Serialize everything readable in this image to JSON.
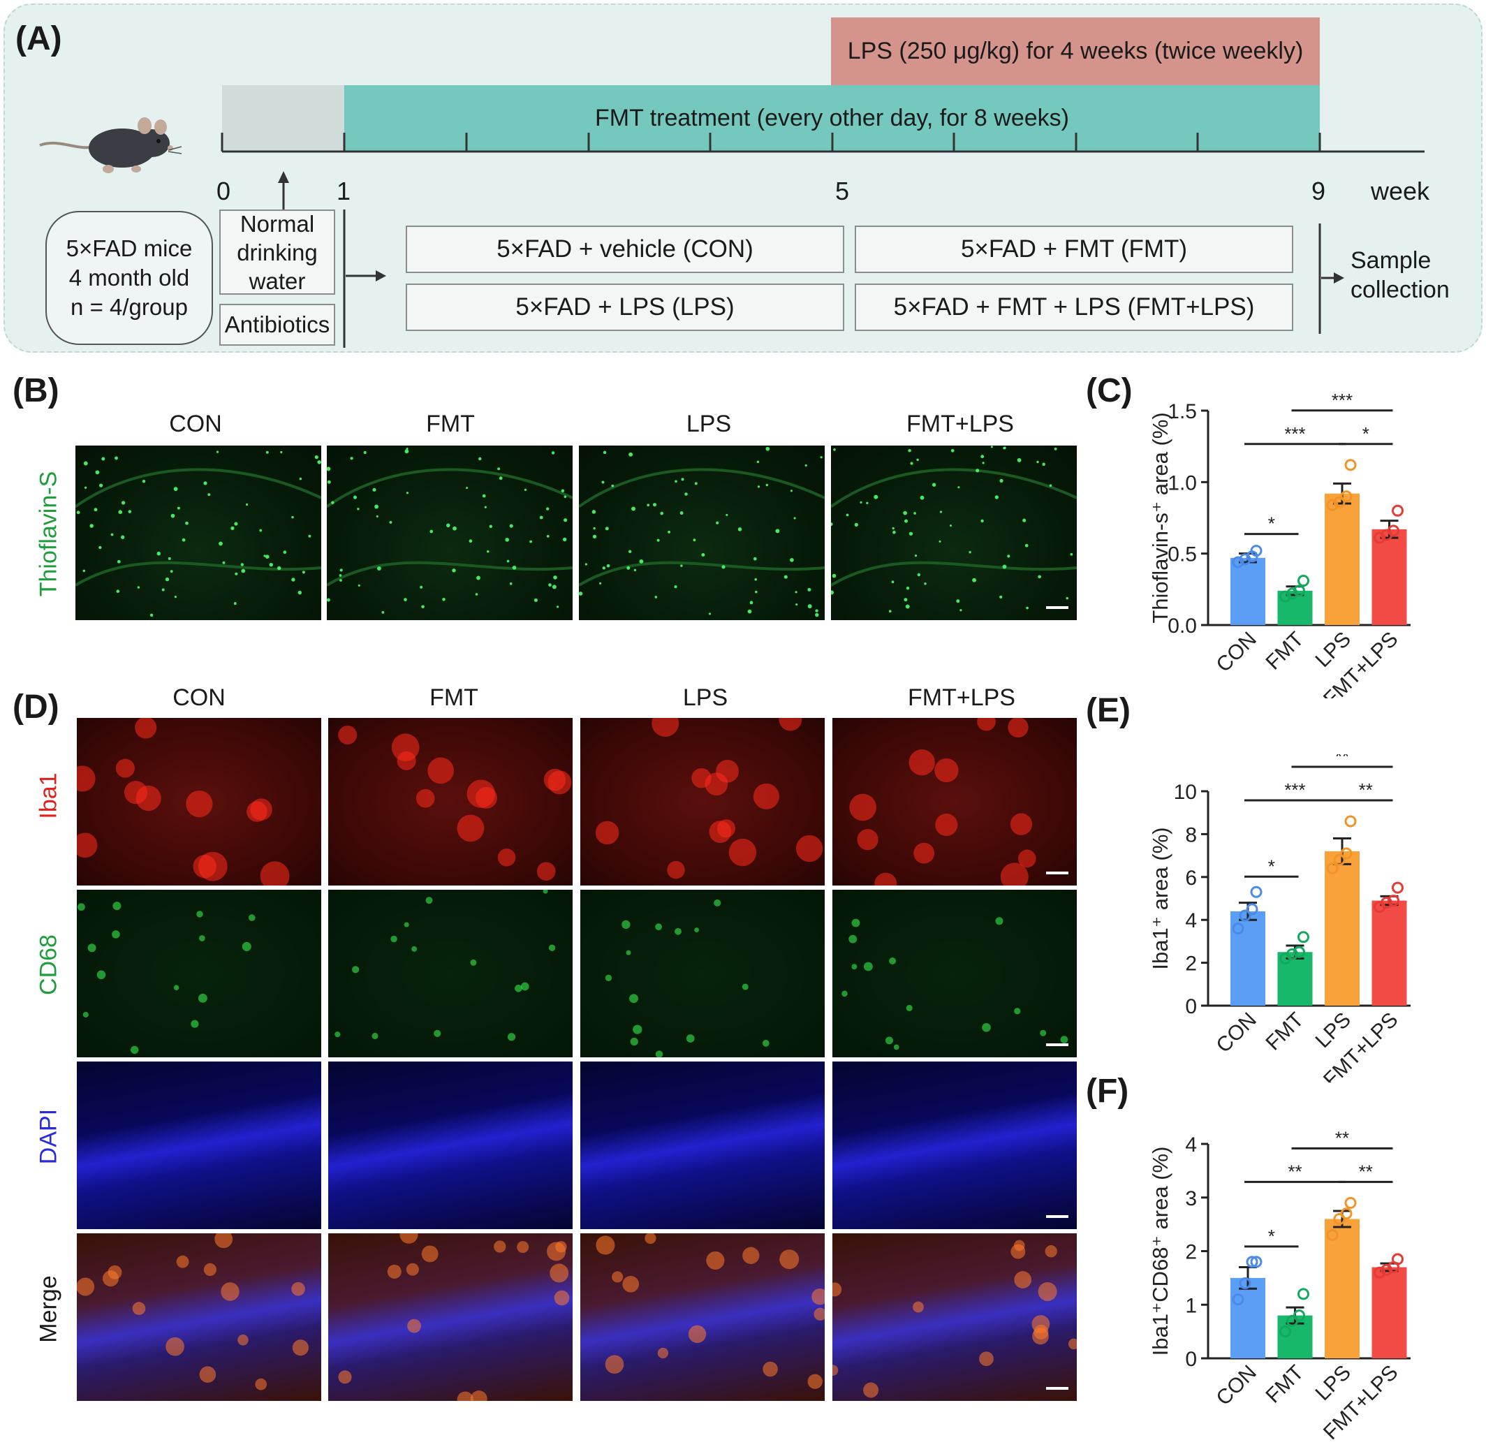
{
  "panelA": {
    "letter": "(A)",
    "lps_bar": "LPS (250 μg/kg)  for 4 weeks (twice weekly)",
    "fmt_bar": "FMT treatment (every other day, for 8 weeks)",
    "ticks": [
      "0",
      "1",
      "5",
      "9",
      "week"
    ],
    "mouse_info": [
      "5×FAD mice",
      "4 month old",
      "n = 4/group"
    ],
    "water": [
      "Normal",
      "drinking",
      "water"
    ],
    "antibiotics": "Antibiotics",
    "groups": [
      "5×FAD + vehicle (CON)",
      "5×FAD + FMT (FMT)",
      "5×FAD + LPS (LPS)",
      "5×FAD + FMT + LPS (FMT+LPS)"
    ],
    "sample": [
      "Sample",
      "collection"
    ],
    "colors": {
      "lps": "#d4948b",
      "fmt": "#74c8be",
      "antibiotic": "#cfdcda",
      "background": "#e4f1ef"
    }
  },
  "panelB": {
    "letter": "(B)",
    "columns": [
      "CON",
      "FMT",
      "LPS",
      "FMT+LPS"
    ],
    "row_label": "Thioflavin-S"
  },
  "panelD": {
    "letter": "(D)",
    "columns": [
      "CON",
      "FMT",
      "LPS",
      "FMT+LPS"
    ],
    "rows": [
      "Iba1",
      "CD68",
      "DAPI",
      "Merge"
    ],
    "row_colors": [
      "#e0201b",
      "#1e9e3a",
      "#2a2ae0",
      "#1a1a1a"
    ]
  },
  "chart_data": [
    {
      "panel": "(C)",
      "type": "bar",
      "categories": [
        "CON",
        "FMT",
        "LPS",
        "FMT+LPS"
      ],
      "values": [
        0.47,
        0.24,
        0.92,
        0.67
      ],
      "errors": [
        0.03,
        0.03,
        0.07,
        0.06
      ],
      "points": [
        [
          0.44,
          0.46,
          0.48,
          0.52
        ],
        [
          0.2,
          0.22,
          0.24,
          0.31
        ],
        [
          0.84,
          0.86,
          0.9,
          1.12
        ],
        [
          0.61,
          0.63,
          0.66,
          0.8
        ]
      ],
      "ylabel": "Thioflavin-s⁺ area (%)",
      "ylim": [
        0,
        1.5
      ],
      "yticks": [
        "0.0",
        "0.5",
        "1.0",
        "1.5"
      ],
      "sig": [
        {
          "from": 0,
          "to": 1,
          "label": "*"
        },
        {
          "from": 0,
          "to": 2,
          "label": "***"
        },
        {
          "from": 2,
          "to": 3,
          "label": "*"
        },
        {
          "from": 1,
          "to": 3,
          "label": "***"
        }
      ]
    },
    {
      "panel": "(E)",
      "type": "bar",
      "categories": [
        "CON",
        "FMT",
        "LPS",
        "FMT+LPS"
      ],
      "values": [
        4.4,
        2.5,
        7.2,
        4.9
      ],
      "errors": [
        0.4,
        0.3,
        0.6,
        0.2
      ],
      "points": [
        [
          3.6,
          4.2,
          4.5,
          5.3
        ],
        [
          2.2,
          2.4,
          2.5,
          3.2
        ],
        [
          6.4,
          6.8,
          7.1,
          8.6
        ],
        [
          4.6,
          4.8,
          4.9,
          5.5
        ]
      ],
      "ylabel": "Iba1⁺ area (%)",
      "ylim": [
        0,
        10
      ],
      "yticks": [
        "0",
        "2",
        "4",
        "6",
        "8",
        "10"
      ],
      "sig": [
        {
          "from": 0,
          "to": 1,
          "label": "*"
        },
        {
          "from": 0,
          "to": 2,
          "label": "***"
        },
        {
          "from": 2,
          "to": 3,
          "label": "**"
        },
        {
          "from": 1,
          "to": 3,
          "label": "**"
        }
      ]
    },
    {
      "panel": "(F)",
      "type": "bar",
      "categories": [
        "CON",
        "FMT",
        "LPS",
        "FMT+LPS"
      ],
      "values": [
        1.5,
        0.8,
        2.6,
        1.7
      ],
      "errors": [
        0.2,
        0.15,
        0.15,
        0.07
      ],
      "points": [
        [
          1.1,
          1.4,
          1.8,
          1.8
        ],
        [
          0.5,
          0.7,
          0.8,
          1.2
        ],
        [
          2.3,
          2.6,
          2.7,
          2.9
        ],
        [
          1.6,
          1.65,
          1.7,
          1.85
        ]
      ],
      "ylabel": "Iba1⁺CD68⁺ area (%)",
      "ylim": [
        0,
        4
      ],
      "yticks": [
        "0",
        "1",
        "2",
        "3",
        "4"
      ],
      "sig": [
        {
          "from": 0,
          "to": 1,
          "label": "*"
        },
        {
          "from": 0,
          "to": 2,
          "label": "**"
        },
        {
          "from": 2,
          "to": 3,
          "label": "**"
        },
        {
          "from": 1,
          "to": 3,
          "label": "**"
        }
      ]
    }
  ],
  "bar_colors": [
    "#5b9ef5",
    "#17b86a",
    "#f9a23a",
    "#f24a44"
  ],
  "point_colors": [
    "#4a8ae8",
    "#12a95d",
    "#f29328",
    "#e83a34"
  ]
}
